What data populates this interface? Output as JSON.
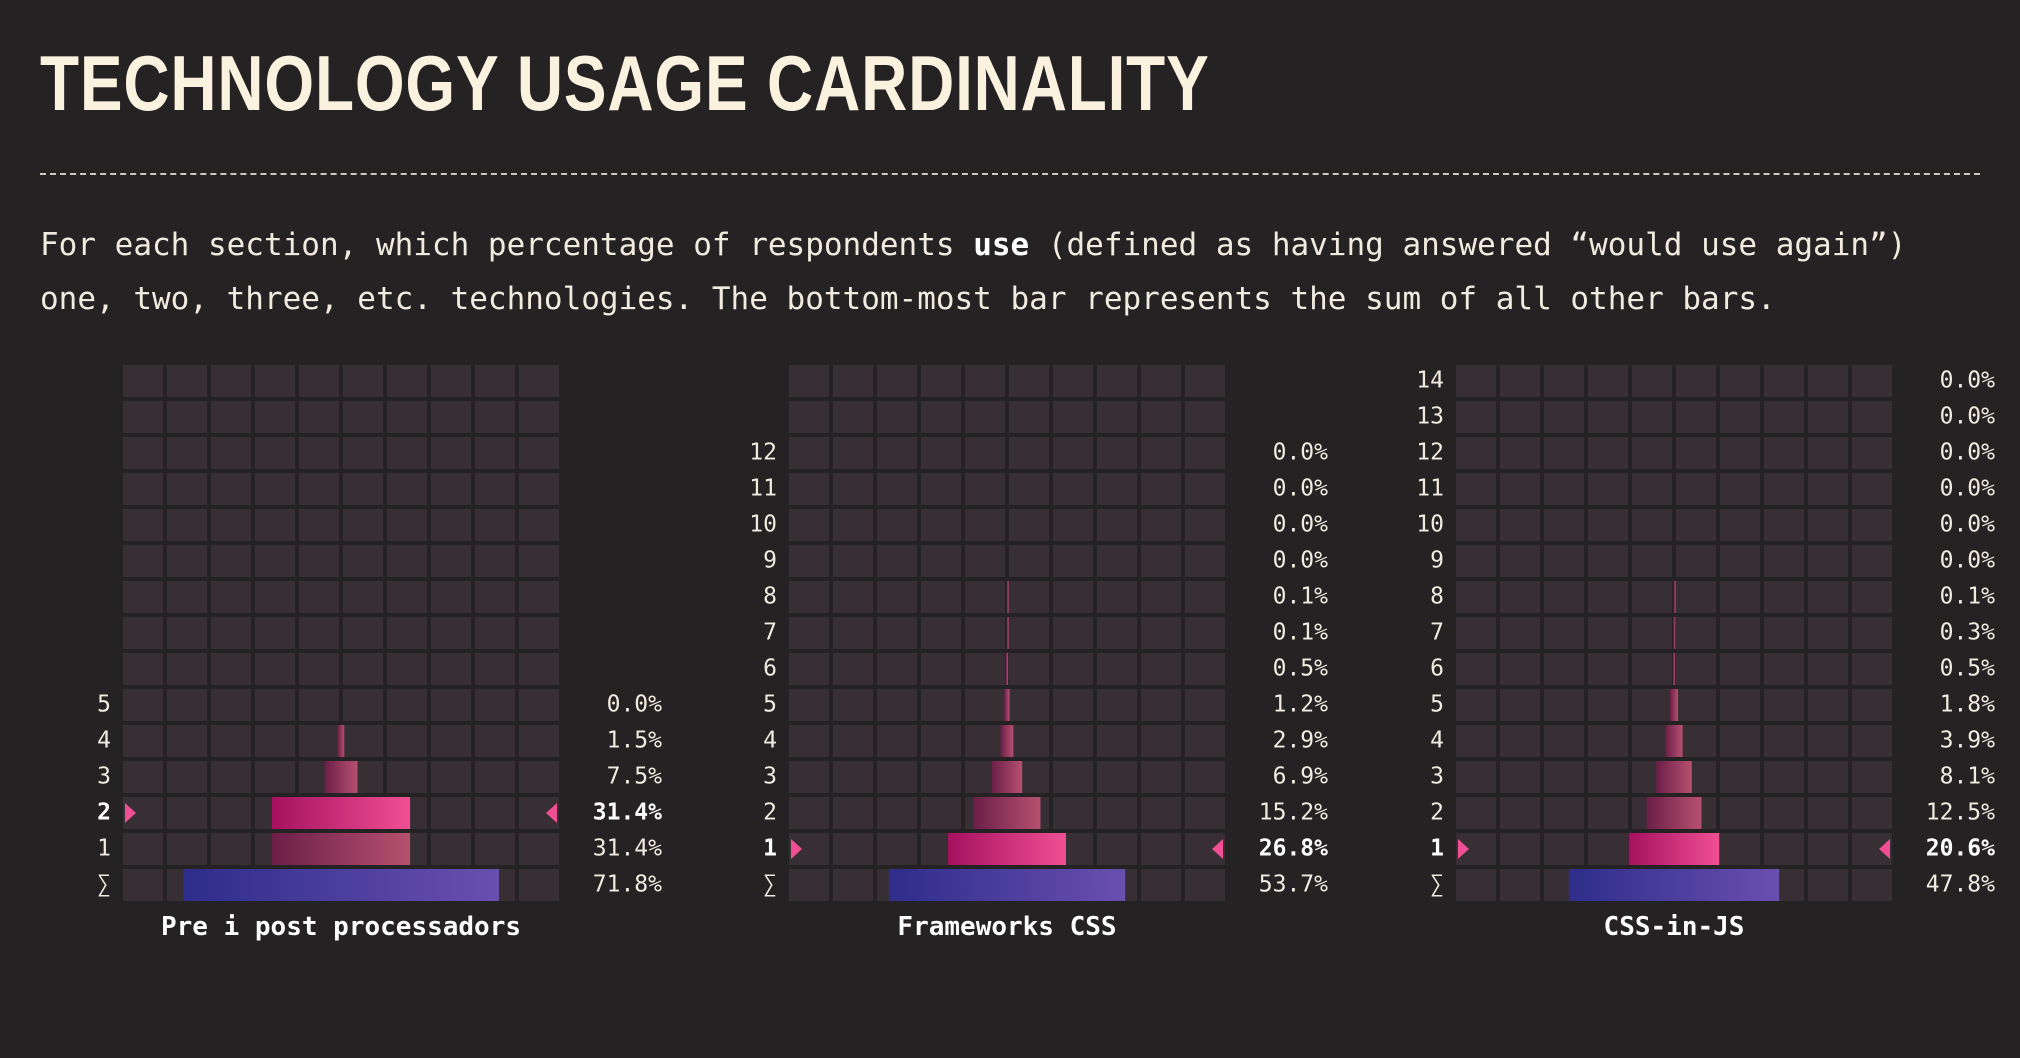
{
  "header": {
    "title": "TECHNOLOGY USAGE CARDINALITY",
    "desc_before": "For each section, which percentage of respondents ",
    "desc_bold": "use",
    "desc_after": " (defined as having answered “would use again”) one, two, three, etc. technologies. The bottom-most bar represents the sum of all other bars."
  },
  "colors": {
    "background": "#252224",
    "grid_cell": "#372f34",
    "bar_highlight": [
      "#a5115f",
      "#f04f93"
    ],
    "bar_normal": [
      "#6b1f48",
      "#b6506f"
    ],
    "bar_sum": [
      "#2e2d8a",
      "#6a4fae"
    ],
    "text": "#f1ebdf"
  },
  "chart_data": [
    {
      "type": "bar",
      "title": "Pre i post processadors",
      "sum_label": "∑",
      "sum_value": "71.8%",
      "sum_percent": 71.8,
      "highlight": "2",
      "rows": [
        {
          "label": "5",
          "value": "0.0%",
          "percent": 0.0
        },
        {
          "label": "4",
          "value": "1.5%",
          "percent": 1.5
        },
        {
          "label": "3",
          "value": "7.5%",
          "percent": 7.5
        },
        {
          "label": "2",
          "value": "31.4%",
          "percent": 31.4
        },
        {
          "label": "1",
          "value": "31.4%",
          "percent": 31.4
        }
      ]
    },
    {
      "type": "bar",
      "title": "Frameworks CSS",
      "sum_label": "∑",
      "sum_value": "53.7%",
      "sum_percent": 53.7,
      "highlight": "1",
      "rows": [
        {
          "label": "12",
          "value": "0.0%",
          "percent": 0.0
        },
        {
          "label": "11",
          "value": "0.0%",
          "percent": 0.0
        },
        {
          "label": "10",
          "value": "0.0%",
          "percent": 0.0
        },
        {
          "label": "9",
          "value": "0.0%",
          "percent": 0.0
        },
        {
          "label": "8",
          "value": "0.1%",
          "percent": 0.1
        },
        {
          "label": "7",
          "value": "0.1%",
          "percent": 0.1
        },
        {
          "label": "6",
          "value": "0.5%",
          "percent": 0.5
        },
        {
          "label": "5",
          "value": "1.2%",
          "percent": 1.2
        },
        {
          "label": "4",
          "value": "2.9%",
          "percent": 2.9
        },
        {
          "label": "3",
          "value": "6.9%",
          "percent": 6.9
        },
        {
          "label": "2",
          "value": "15.2%",
          "percent": 15.2
        },
        {
          "label": "1",
          "value": "26.8%",
          "percent": 26.8
        }
      ]
    },
    {
      "type": "bar",
      "title": "CSS-in-JS",
      "sum_label": "∑",
      "sum_value": "47.8%",
      "sum_percent": 47.8,
      "highlight": "1",
      "rows": [
        {
          "label": "14",
          "value": "0.0%",
          "percent": 0.0
        },
        {
          "label": "13",
          "value": "0.0%",
          "percent": 0.0
        },
        {
          "label": "12",
          "value": "0.0%",
          "percent": 0.0
        },
        {
          "label": "11",
          "value": "0.0%",
          "percent": 0.0
        },
        {
          "label": "10",
          "value": "0.0%",
          "percent": 0.0
        },
        {
          "label": "9",
          "value": "0.0%",
          "percent": 0.0
        },
        {
          "label": "8",
          "value": "0.1%",
          "percent": 0.1
        },
        {
          "label": "7",
          "value": "0.3%",
          "percent": 0.3
        },
        {
          "label": "6",
          "value": "0.5%",
          "percent": 0.5
        },
        {
          "label": "5",
          "value": "1.8%",
          "percent": 1.8
        },
        {
          "label": "4",
          "value": "3.9%",
          "percent": 3.9
        },
        {
          "label": "3",
          "value": "8.1%",
          "percent": 8.1
        },
        {
          "label": "2",
          "value": "12.5%",
          "percent": 12.5
        },
        {
          "label": "1",
          "value": "20.6%",
          "percent": 20.6
        }
      ]
    }
  ]
}
